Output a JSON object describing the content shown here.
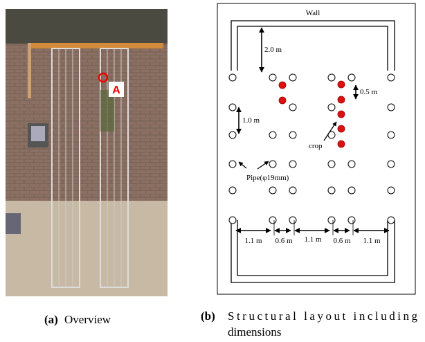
{
  "photo": {
    "marker": "A"
  },
  "diagram": {
    "wall": "Wall",
    "dimensions": [
      "2.0 m",
      "0.5 m",
      "1.0 m",
      "1.1 m",
      "0.6 m",
      "1.1 m",
      "0.6 m",
      "1.1 m"
    ],
    "crop": "crop",
    "pipe": "Pipe(φ19mm)"
  },
  "captions": {
    "a": {
      "label": "(a)",
      "text": "Overview"
    },
    "b": {
      "label": "(b)",
      "line1": "Structural layout including",
      "line2": "dimensions"
    }
  }
}
